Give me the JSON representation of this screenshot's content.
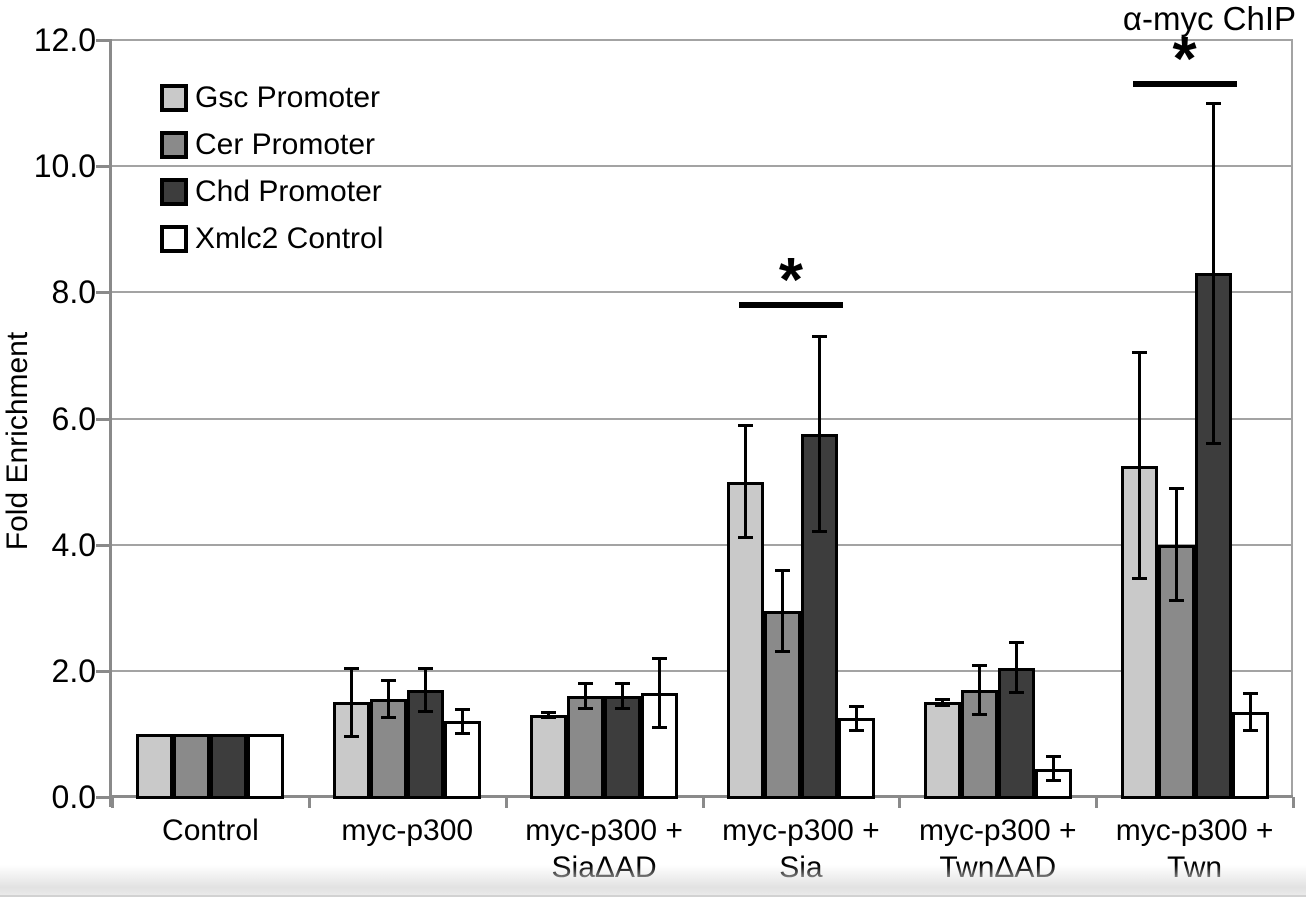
{
  "title": "α-myc ChIP",
  "y_axis_title": "Fold Enrichment",
  "colors": {
    "background": "#ffffff",
    "gridline": "#a3a3a3",
    "axis": "#8a8a8a",
    "bar_border": "#000000",
    "error_bar": "#000000",
    "significance": "#000000",
    "bottom_band": "#e2e2e2"
  },
  "chart_data": {
    "type": "bar",
    "title": "α-myc ChIP",
    "xlabel": "",
    "ylabel": "Fold Enrichment",
    "ylim": [
      0,
      12
    ],
    "ytick_step": 2,
    "ytick_labels": [
      "0.0",
      "2.0",
      "4.0",
      "6.0",
      "8.0",
      "10.0",
      "12.0"
    ],
    "grid": "horizontal",
    "legend_position": "top-left-inside",
    "categories": [
      "Control",
      "myc-p300",
      "myc-p300 + SiaΔAD",
      "myc-p300 + Sia",
      "myc-p300 + TwnΔAD",
      "myc-p300 + Twn"
    ],
    "category_label_lines": [
      [
        "Control"
      ],
      [
        "myc-p300"
      ],
      [
        "myc-p300 +",
        "SiaΔAD"
      ],
      [
        "myc-p300 +",
        "Sia"
      ],
      [
        "myc-p300 +",
        "TwnΔAD"
      ],
      [
        "myc-p300 +",
        "Twn"
      ]
    ],
    "series": [
      {
        "name": "Gsc Promoter",
        "color": "#c9c9c9",
        "values": [
          1.0,
          1.5,
          1.3,
          5.0,
          1.5,
          5.25
        ],
        "errors": [
          0,
          0.55,
          0.05,
          0.9,
          0.05,
          1.8
        ]
      },
      {
        "name": "Cer Promoter",
        "color": "#8a8a8a",
        "values": [
          1.0,
          1.55,
          1.6,
          2.95,
          1.7,
          4.0
        ],
        "errors": [
          0,
          0.3,
          0.2,
          0.65,
          0.4,
          0.9
        ]
      },
      {
        "name": "Chd Promoter",
        "color": "#3d3d3d",
        "values": [
          1.0,
          1.7,
          1.6,
          5.75,
          2.05,
          8.3
        ],
        "errors": [
          0,
          0.35,
          0.2,
          1.55,
          0.4,
          2.7
        ]
      },
      {
        "name": "Xmlc2 Control",
        "color": "#ffffff",
        "values": [
          1.0,
          1.2,
          1.65,
          1.25,
          0.45,
          1.35
        ],
        "errors": [
          0,
          0.2,
          0.55,
          0.2,
          0.2,
          0.3
        ]
      }
    ],
    "significance_markers": [
      {
        "category": "myc-p300 + Sia",
        "category_index": 3,
        "marker": "*",
        "bar_span": [
          0,
          2
        ],
        "line_y": 7.85
      },
      {
        "category": "myc-p300 + Twn",
        "category_index": 5,
        "marker": "*",
        "bar_span": [
          0,
          2
        ],
        "line_y": 11.35
      }
    ]
  }
}
